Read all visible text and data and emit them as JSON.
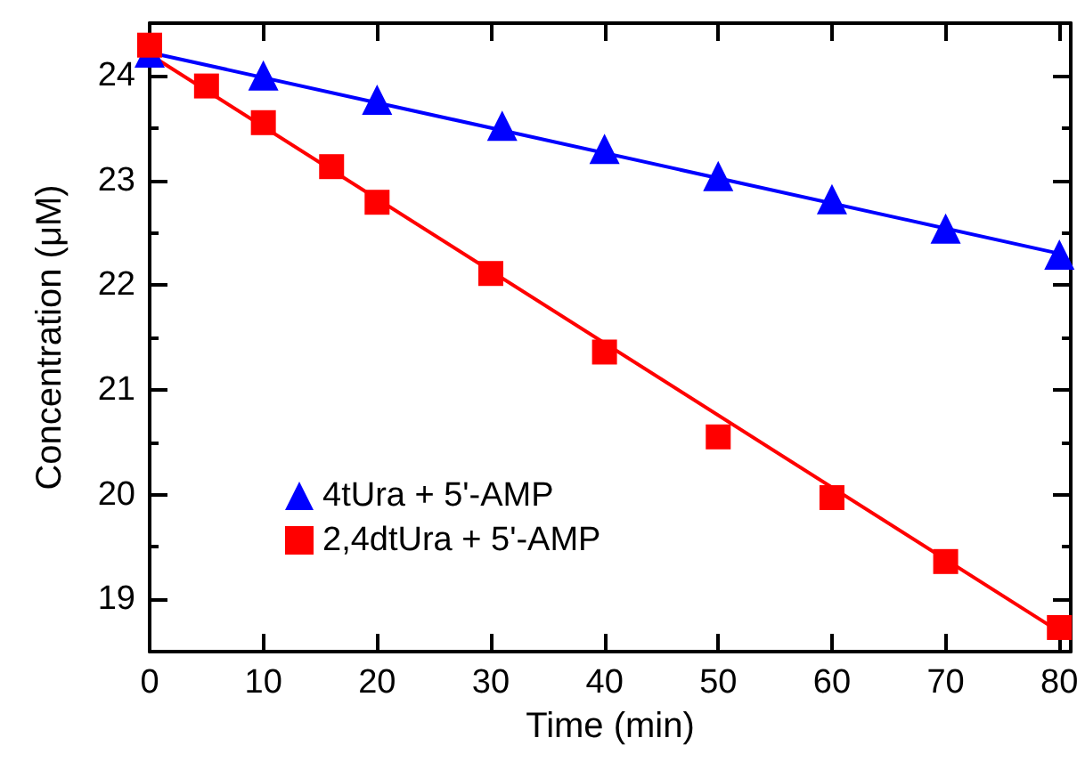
{
  "chart_data": {
    "type": "scatter",
    "xlabel": "Time (min)",
    "ylabel": "Concentration (μM)",
    "xlim": [
      0,
      81
    ],
    "xticks": [
      0,
      10,
      20,
      30,
      40,
      50,
      60,
      70,
      80
    ],
    "ylim": [
      18.5,
      24.5
    ],
    "yticks": [
      19,
      20,
      21,
      22,
      23,
      24
    ],
    "grid": false,
    "legend": "bottom left",
    "series": [
      {
        "name": "4tUra + 5'-AMP",
        "color": "#0000ff",
        "marker": "triangle",
        "x": [
          0,
          10,
          20,
          31,
          40,
          50,
          60,
          70,
          80
        ],
        "values": [
          24.22,
          24.0,
          23.77,
          23.52,
          23.3,
          23.04,
          22.82,
          22.54,
          22.29
        ]
      },
      {
        "name": "2,4dtUra + 5'-AMP",
        "color": "#ff0000",
        "marker": "square",
        "x": [
          0,
          5,
          10,
          16,
          20,
          30,
          40,
          50,
          60,
          70,
          80
        ],
        "values": [
          24.29,
          23.9,
          23.55,
          23.13,
          22.79,
          22.11,
          21.36,
          20.55,
          19.97,
          19.36,
          18.73
        ]
      },
      {
        "color": "#0000ff",
        "type": "line",
        "marker": "none",
        "line_style": "solid",
        "x": [
          0,
          80
        ],
        "values": [
          24.22,
          22.3
        ]
      },
      {
        "color": "#ff0000",
        "type": "line",
        "marker": "none",
        "line_style": "solid",
        "x": [
          0,
          80
        ],
        "values": [
          24.2,
          18.69
        ]
      }
    ]
  }
}
